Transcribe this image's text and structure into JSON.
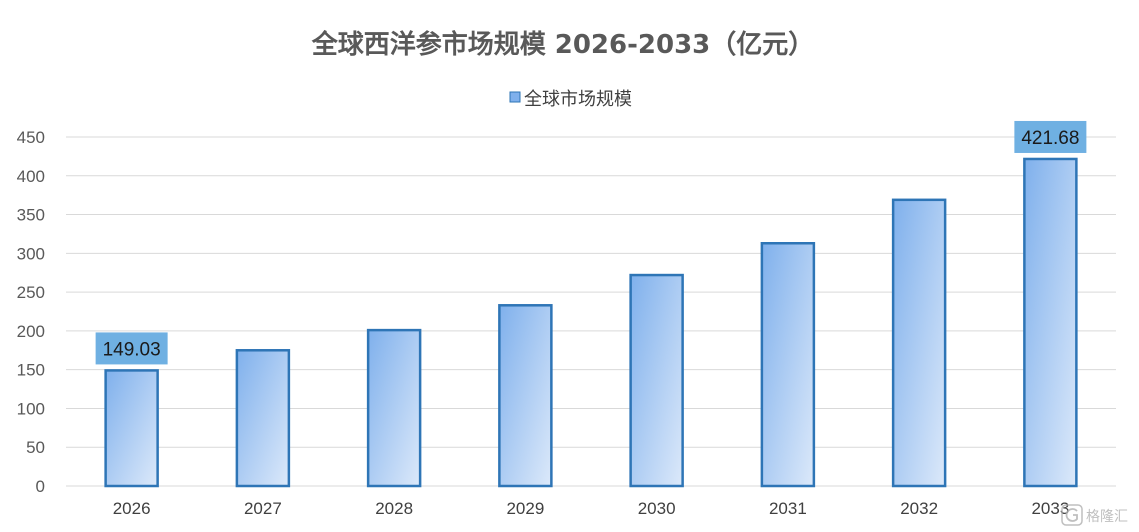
{
  "chart_data": {
    "type": "bar",
    "title": "全球西洋参市场规模 2026-2033（亿元）",
    "categories": [
      "2026",
      "2027",
      "2028",
      "2029",
      "2030",
      "2031",
      "2032",
      "2033"
    ],
    "series": [
      {
        "name": "全球市场规模",
        "values": [
          149.03,
          175,
          201,
          233,
          272,
          313,
          369,
          421.68
        ]
      }
    ],
    "data_labels": [
      {
        "category": "2026",
        "text": "149.03"
      },
      {
        "category": "2033",
        "text": "421.68"
      }
    ],
    "ylim": [
      0,
      450
    ],
    "yticks": [
      "0",
      "50",
      "100",
      "150",
      "200",
      "250",
      "300",
      "350",
      "400",
      "450"
    ],
    "xlabel": "",
    "ylabel": "",
    "grid": true,
    "legend_position": "top-center",
    "colors": {
      "bar_top": "#7fb0ec",
      "bar_bottom": "#dce9fa",
      "bar_border": "#2e75b6",
      "label_bg": "#6fb0e2",
      "grid": "#d9d9d9"
    }
  },
  "watermark": {
    "icon": "logo-icon",
    "text": "格隆汇"
  }
}
